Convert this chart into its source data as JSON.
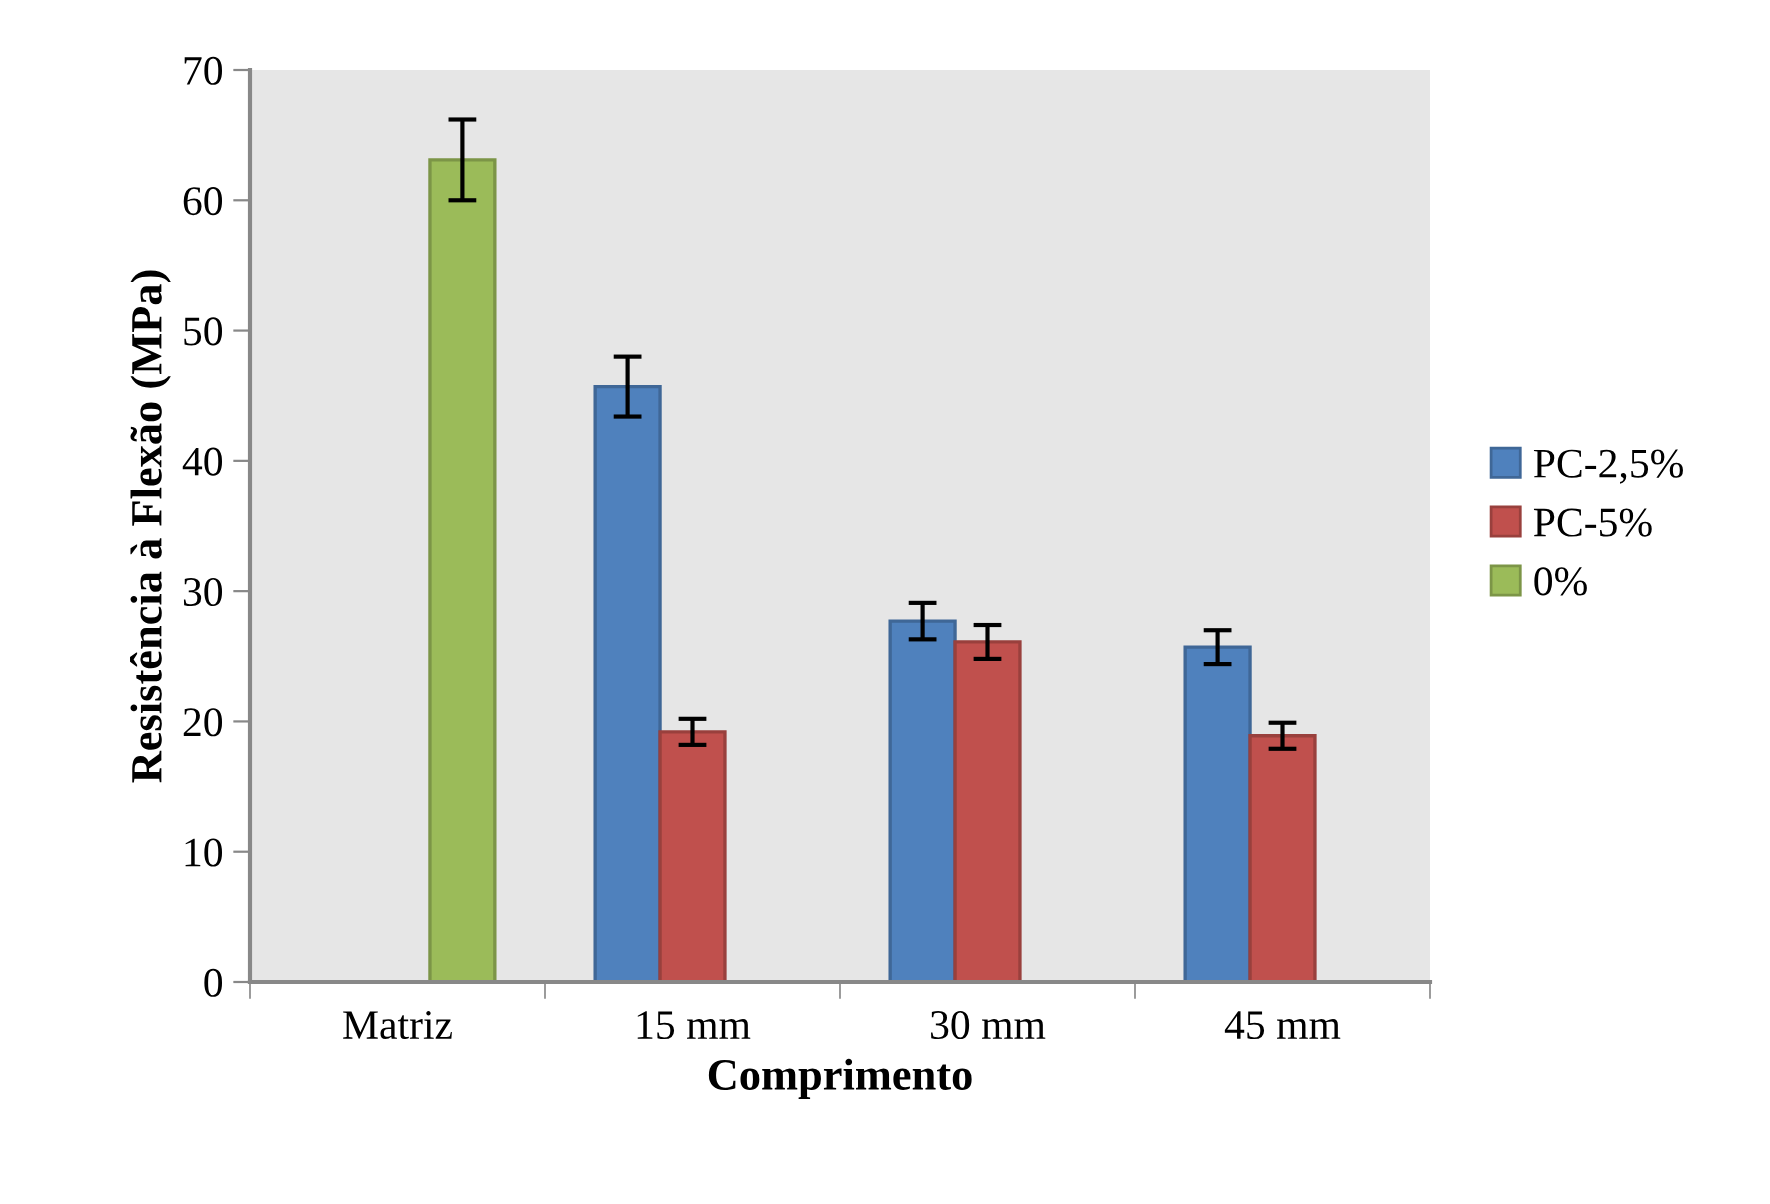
{
  "chart_data": {
    "type": "bar",
    "xlabel": "Comprimento",
    "ylabel": "Resistência à Flexão (MPa)",
    "categories": [
      "Matriz",
      "15 mm",
      "30 mm",
      "45 mm"
    ],
    "series": [
      {
        "name": "PC-2,5%",
        "color": "#4f81bd",
        "values": [
          null,
          45.7,
          27.7,
          25.7
        ],
        "errors": [
          null,
          2.3,
          1.4,
          1.3
        ]
      },
      {
        "name": "PC-5%",
        "color": "#c0504d",
        "values": [
          null,
          19.2,
          26.1,
          18.9
        ],
        "errors": [
          null,
          1.0,
          1.3,
          1.0
        ]
      },
      {
        "name": "0%",
        "color": "#9bbb59",
        "values": [
          63.1,
          null,
          null,
          null
        ],
        "errors": [
          3.1,
          null,
          null,
          null
        ]
      }
    ],
    "ylim": [
      0,
      70
    ],
    "yticks": [
      0,
      10,
      20,
      30,
      40,
      50,
      60,
      70
    ],
    "grid": false,
    "legend": "right"
  }
}
